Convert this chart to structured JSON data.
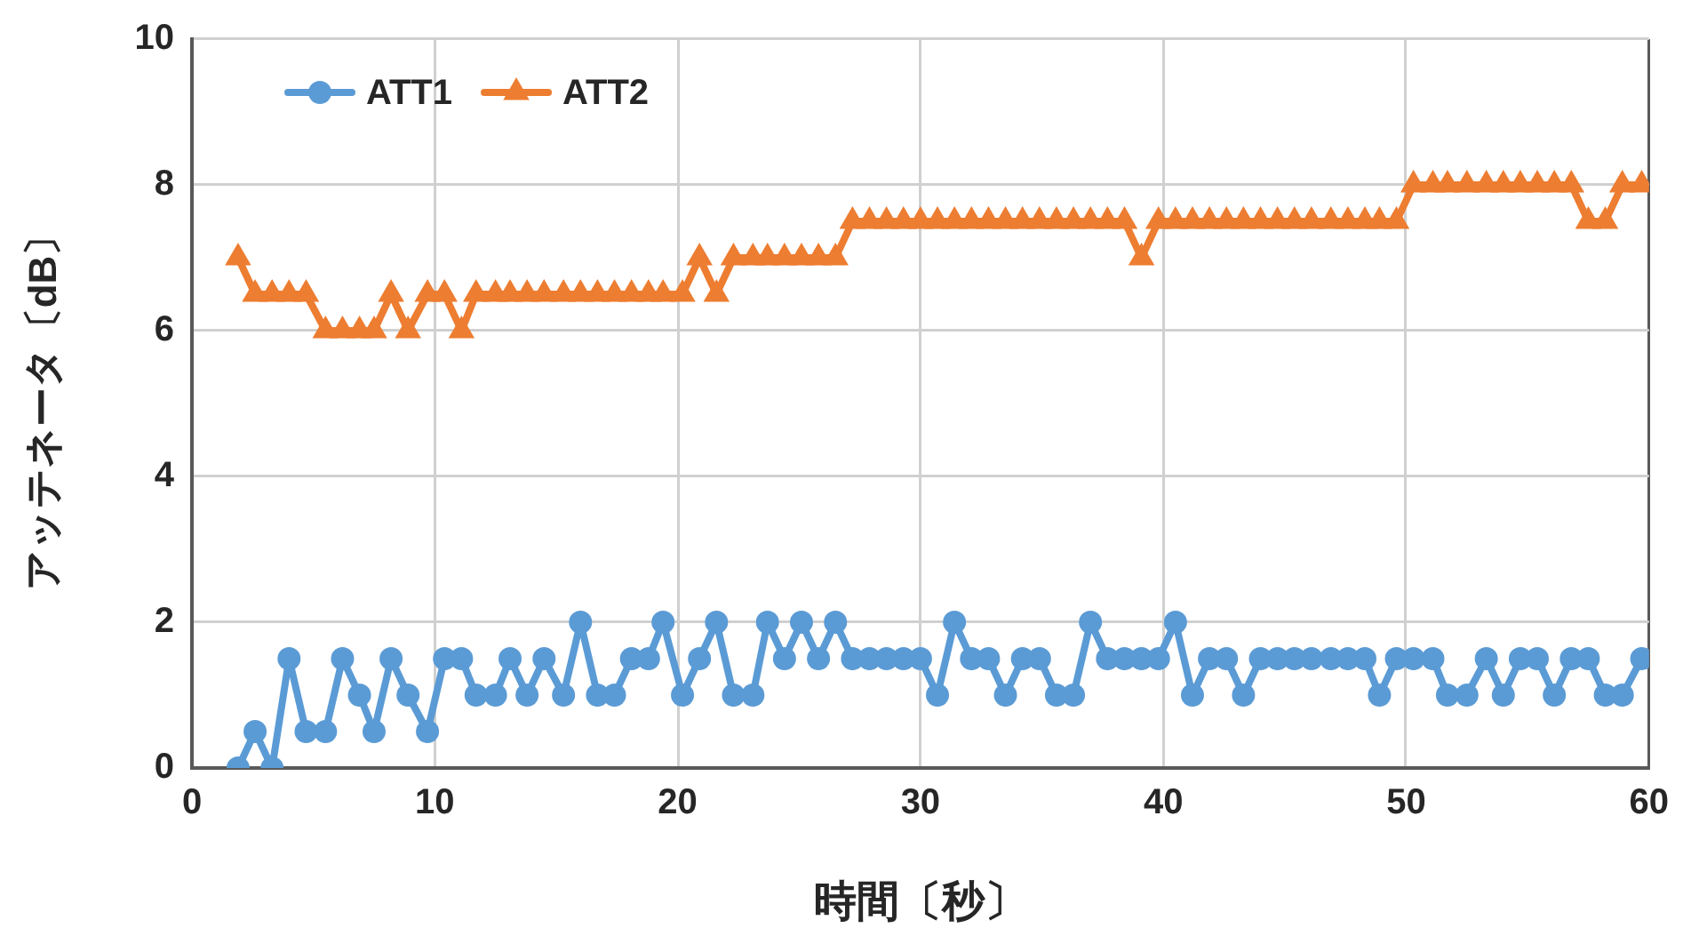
{
  "chart_data": {
    "type": "line",
    "xlabel": "時間〔秒〕",
    "ylabel": "アッテネータ〔dB〕",
    "x": [
      1.9,
      2.6,
      3.3,
      4,
      4.7,
      5.5,
      6.2,
      6.9,
      7.5,
      8.2,
      8.9,
      9.7,
      10.4,
      11.1,
      11.7,
      12.5,
      13.1,
      13.8,
      14.5,
      15.3,
      16,
      16.7,
      17.4,
      18.1,
      18.8,
      19.4,
      20.2,
      20.9,
      21.6,
      22.3,
      23.1,
      23.7,
      24.4,
      25.1,
      25.8,
      26.5,
      27.2,
      27.9,
      28.6,
      29.3,
      30,
      30.7,
      31.4,
      32.1,
      32.8,
      33.5,
      34.2,
      34.9,
      35.6,
      36.3,
      37,
      37.7,
      38.4,
      39.1,
      39.8,
      40.5,
      41.2,
      41.9,
      42.6,
      43.3,
      44,
      44.7,
      45.4,
      46.1,
      46.9,
      47.6,
      48.3,
      48.9,
      49.6,
      50.3,
      51.1,
      51.7,
      52.5,
      53.3,
      54,
      54.7,
      55.4,
      56.1,
      56.8,
      57.5,
      58.2,
      58.9,
      59.7
    ],
    "series": [
      {
        "name": "ATT1",
        "color": "#5b9bd5",
        "marker": "circle",
        "values": [
          0,
          0.5,
          0,
          1.5,
          0.5,
          0.5,
          1.5,
          1,
          0.5,
          1.5,
          1,
          0.5,
          1.5,
          1.5,
          1,
          1,
          1.5,
          1,
          1.5,
          1,
          2,
          1,
          1,
          1.5,
          1.5,
          2,
          1,
          1.5,
          2,
          1,
          1,
          2,
          1.5,
          2,
          1.5,
          2,
          1.5,
          1.5,
          1.5,
          1.5,
          1.5,
          1,
          2,
          1.5,
          1.5,
          1,
          1.5,
          1.5,
          1,
          1,
          2,
          1.5,
          1.5,
          1.5,
          1.5,
          2,
          1,
          1.5,
          1.5,
          1,
          1.5,
          1.5,
          1.5,
          1.5,
          1.5,
          1.5,
          1.5,
          1,
          1.5,
          1.5,
          1.5,
          1,
          1,
          1.5,
          1,
          1.5,
          1.5,
          1,
          1.5,
          1.5,
          1,
          1,
          1.5
        ]
      },
      {
        "name": "ATT2",
        "color": "#ed7d31",
        "marker": "triangle",
        "values": [
          7,
          6.5,
          6.5,
          6.5,
          6.5,
          6,
          6,
          6,
          6,
          6.5,
          6,
          6.5,
          6.5,
          6,
          6.5,
          6.5,
          6.5,
          6.5,
          6.5,
          6.5,
          6.5,
          6.5,
          6.5,
          6.5,
          6.5,
          6.5,
          6.5,
          7,
          6.5,
          7,
          7,
          7,
          7,
          7,
          7,
          7,
          7.5,
          7.5,
          7.5,
          7.5,
          7.5,
          7.5,
          7.5,
          7.5,
          7.5,
          7.5,
          7.5,
          7.5,
          7.5,
          7.5,
          7.5,
          7.5,
          7.5,
          7,
          7.5,
          7.5,
          7.5,
          7.5,
          7.5,
          7.5,
          7.5,
          7.5,
          7.5,
          7.5,
          7.5,
          7.5,
          7.5,
          7.5,
          7.5,
          8,
          8,
          8,
          8,
          8,
          8,
          8,
          8,
          8,
          8,
          7.5,
          7.5,
          8,
          8
        ]
      }
    ],
    "xlim": [
      0,
      60
    ],
    "xticks": [
      0,
      10,
      20,
      30,
      40,
      50,
      60
    ],
    "ylim": [
      0,
      10
    ],
    "yticks": [
      0,
      2,
      4,
      6,
      8,
      10
    ],
    "grid": true,
    "legend": "top left",
    "line_style": "solid"
  }
}
